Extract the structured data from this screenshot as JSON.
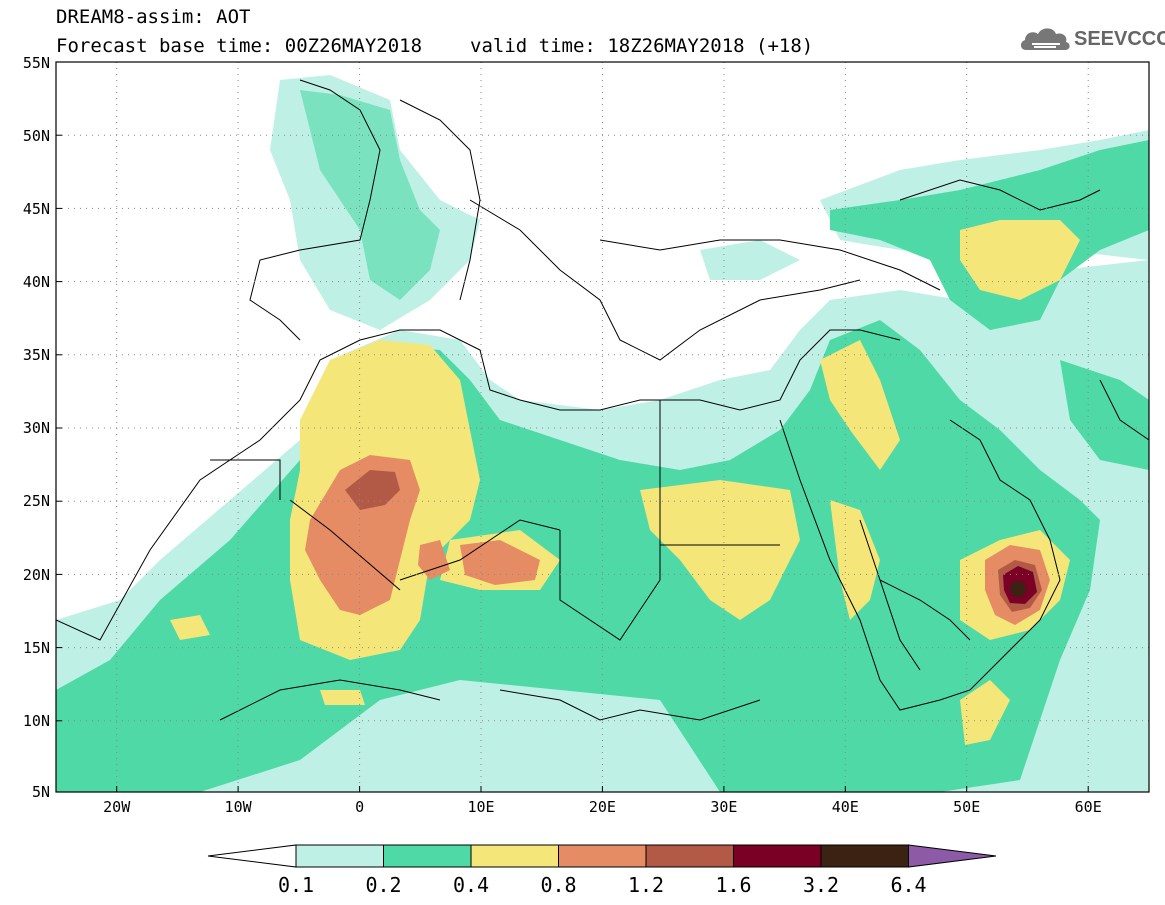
{
  "header": {
    "line1": "DREAM8-assim: AOT",
    "base_time": "Forecast base time: 00Z26MAY2018",
    "valid_time": "valid time: 18Z26MAY2018 (+18)"
  },
  "logo": {
    "text": "SEEVCCC",
    "icon": "cloud-icon"
  },
  "map": {
    "lon_range": [
      -25,
      65
    ],
    "lat_range": [
      5,
      55
    ],
    "lat_ticks": [
      "5N",
      "10N",
      "15N",
      "20N",
      "25N",
      "30N",
      "35N",
      "40N",
      "45N",
      "50N",
      "55N"
    ],
    "lon_ticks": [
      "20W",
      "10W",
      "0",
      "10E",
      "20E",
      "30E",
      "40E",
      "50E",
      "60E"
    ],
    "gridlines": "dotted"
  },
  "colorbar": {
    "labels": [
      "0.1",
      "0.2",
      "0.4",
      "0.8",
      "1.2",
      "1.6",
      "3.2",
      "6.4"
    ],
    "colors": [
      "#bff0e6",
      "#4fd9a6",
      "#f5e67a",
      "#e58c64",
      "#b35a47",
      "#7a0026",
      "#3b2212",
      "#8c5aa6"
    ]
  }
}
